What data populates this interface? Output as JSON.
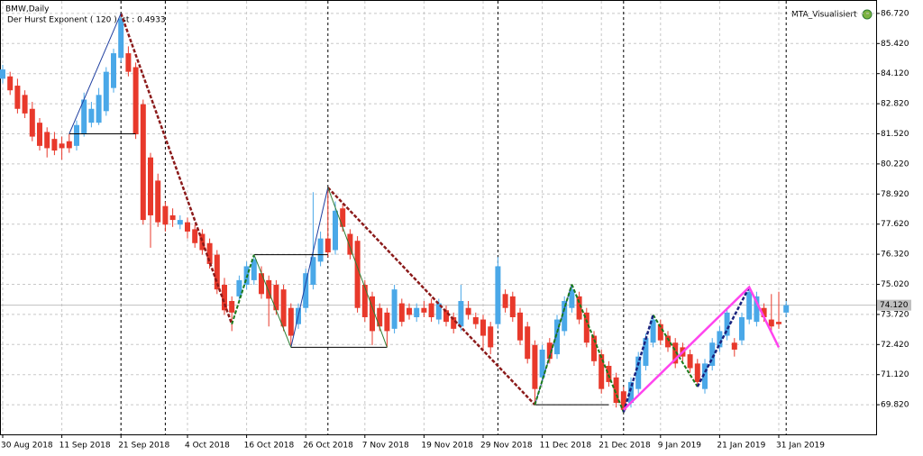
{
  "chart_data": {
    "type": "candlestick",
    "title": "BMW,Daily",
    "subtitle": "Der Hurst Exponent ( 120 ) ist : 0.4933",
    "indicator_label": "MTA_Visualisiert",
    "up_color": "#4aa8e8",
    "down_color": "#e8392b",
    "grid": true,
    "categories": [
      "30 Aug 2018",
      null,
      null,
      null,
      null,
      null,
      null,
      null,
      "11 Sep 2018",
      null,
      null,
      null,
      null,
      null,
      null,
      null,
      "21 Sep 2018",
      null,
      null,
      null,
      null,
      null,
      null,
      null,
      null,
      "4 Oct 2018",
      null,
      null,
      null,
      null,
      null,
      null,
      null,
      "16 Oct 2018",
      null,
      null,
      null,
      null,
      null,
      null,
      null,
      "26 Oct 2018",
      null,
      null,
      null,
      null,
      null,
      null,
      null,
      "7 Nov 2018",
      null,
      null,
      null,
      null,
      null,
      null,
      null,
      "19 Nov 2018",
      null,
      null,
      null,
      null,
      null,
      null,
      null,
      "29 Nov 2018",
      null,
      null,
      null,
      null,
      null,
      null,
      null,
      "11 Dec 2018",
      null,
      null,
      null,
      null,
      null,
      null,
      null,
      "21 Dec 2018",
      null,
      null,
      null,
      null,
      null,
      null,
      null,
      "9 Jan 2019",
      null,
      null,
      null,
      null,
      null,
      null,
      null,
      "21 Jan 2019",
      null,
      null,
      null,
      null,
      null,
      null,
      null,
      "31 Jan 2019",
      null
    ],
    "ohlc": [
      [
        83.9,
        84.5,
        83.7,
        84.3
      ],
      [
        84.0,
        84.2,
        83.2,
        83.4
      ],
      [
        83.6,
        83.9,
        82.4,
        82.6
      ],
      [
        83.2,
        83.4,
        82.2,
        82.4
      ],
      [
        82.6,
        82.9,
        81.2,
        81.4
      ],
      [
        82.0,
        82.2,
        80.8,
        81.0
      ],
      [
        81.6,
        81.8,
        80.5,
        80.9
      ],
      [
        81.3,
        81.6,
        80.6,
        80.8
      ],
      [
        81.1,
        81.4,
        80.4,
        80.9
      ],
      [
        81.2,
        81.5,
        80.7,
        80.9
      ],
      [
        81.0,
        82.1,
        80.8,
        81.9
      ],
      [
        81.5,
        83.3,
        81.4,
        83.0
      ],
      [
        82.0,
        82.9,
        81.8,
        82.6
      ],
      [
        82.0,
        83.5,
        81.9,
        83.2
      ],
      [
        82.5,
        84.4,
        82.3,
        84.2
      ],
      [
        83.5,
        85.2,
        83.3,
        85.0
      ],
      [
        84.8,
        86.72,
        84.6,
        86.5
      ],
      [
        85.0,
        85.3,
        84.0,
        84.2
      ],
      [
        84.4,
        84.6,
        81.3,
        81.5
      ],
      [
        82.8,
        83.0,
        77.6,
        77.8
      ],
      [
        80.5,
        80.7,
        76.6,
        78.0
      ],
      [
        79.5,
        79.8,
        77.5,
        77.7
      ],
      [
        78.4,
        78.6,
        77.3,
        77.6
      ],
      [
        78.0,
        78.3,
        77.5,
        77.8
      ],
      [
        77.6,
        78.0,
        77.4,
        77.8
      ],
      [
        77.7,
        77.9,
        77.0,
        77.3
      ],
      [
        77.4,
        77.6,
        76.6,
        76.8
      ],
      [
        77.2,
        77.4,
        76.3,
        76.5
      ],
      [
        76.8,
        77.0,
        75.7,
        75.9
      ],
      [
        76.3,
        76.5,
        74.6,
        74.8
      ],
      [
        75.0,
        75.3,
        73.7,
        73.9
      ],
      [
        74.3,
        74.5,
        73.0,
        73.8
      ],
      [
        74.5,
        75.4,
        74.3,
        75.2
      ],
      [
        75.0,
        76.0,
        74.8,
        75.8
      ],
      [
        75.2,
        76.3,
        75.0,
        76.1
      ],
      [
        75.5,
        75.8,
        74.4,
        74.6
      ],
      [
        75.2,
        75.4,
        73.2,
        74.4
      ],
      [
        75.0,
        75.2,
        73.7,
        73.9
      ],
      [
        74.8,
        75.0,
        73.0,
        73.2
      ],
      [
        74.0,
        74.2,
        72.3,
        72.8
      ],
      [
        73.3,
        74.2,
        73.1,
        74.0
      ],
      [
        74.0,
        75.7,
        73.8,
        75.5
      ],
      [
        75.0,
        79.0,
        74.8,
        76.2
      ],
      [
        76.0,
        77.3,
        75.8,
        77.0
      ],
      [
        77.0,
        79.2,
        76.2,
        76.4
      ],
      [
        76.5,
        78.6,
        76.3,
        78.2
      ],
      [
        78.3,
        78.5,
        77.3,
        77.5
      ],
      [
        77.2,
        77.4,
        76.1,
        76.3
      ],
      [
        76.9,
        77.1,
        73.8,
        74.0
      ],
      [
        75.0,
        75.2,
        73.4,
        73.6
      ],
      [
        74.5,
        74.7,
        72.4,
        73.0
      ],
      [
        74.0,
        74.2,
        73.0,
        73.2
      ],
      [
        73.8,
        74.0,
        72.3,
        73.0
      ],
      [
        73.1,
        75.0,
        72.9,
        74.8
      ],
      [
        74.2,
        74.4,
        73.2,
        73.4
      ],
      [
        74.0,
        74.2,
        73.5,
        73.7
      ],
      [
        73.6,
        74.2,
        73.4,
        74.0
      ],
      [
        74.0,
        74.3,
        73.6,
        73.8
      ],
      [
        74.2,
        74.4,
        73.4,
        73.6
      ],
      [
        73.5,
        74.4,
        73.3,
        74.2
      ],
      [
        73.9,
        74.1,
        73.2,
        73.4
      ],
      [
        73.6,
        73.8,
        72.9,
        73.1
      ],
      [
        73.2,
        75.0,
        73.0,
        74.3
      ],
      [
        74.0,
        74.3,
        73.5,
        73.7
      ],
      [
        73.6,
        73.8,
        73.1,
        73.3
      ],
      [
        73.5,
        73.7,
        72.2,
        72.8
      ],
      [
        73.2,
        73.4,
        72.0,
        72.3
      ],
      [
        73.3,
        76.2,
        73.1,
        75.8
      ],
      [
        74.6,
        74.8,
        73.8,
        74.0
      ],
      [
        74.5,
        74.7,
        73.4,
        73.6
      ],
      [
        73.8,
        74.0,
        72.4,
        72.6
      ],
      [
        73.2,
        73.4,
        71.6,
        71.8
      ],
      [
        72.4,
        72.6,
        69.85,
        70.5
      ],
      [
        71.0,
        72.4,
        70.8,
        72.2
      ],
      [
        72.5,
        72.7,
        71.6,
        71.8
      ],
      [
        72.0,
        73.7,
        71.8,
        73.5
      ],
      [
        73.0,
        74.5,
        72.8,
        74.3
      ],
      [
        74.0,
        75.0,
        73.8,
        74.8
      ],
      [
        74.5,
        74.7,
        73.3,
        73.5
      ],
      [
        73.8,
        74.0,
        72.3,
        72.5
      ],
      [
        72.8,
        73.0,
        71.5,
        71.7
      ],
      [
        72.0,
        72.2,
        70.3,
        70.5
      ],
      [
        71.5,
        71.7,
        70.6,
        70.8
      ],
      [
        71.0,
        71.2,
        69.7,
        69.9
      ],
      [
        70.4,
        70.6,
        69.5,
        69.6
      ],
      [
        69.9,
        71.0,
        69.7,
        70.8
      ],
      [
        70.5,
        72.1,
        70.3,
        71.9
      ],
      [
        71.5,
        72.9,
        71.3,
        72.7
      ],
      [
        72.5,
        73.7,
        72.3,
        73.5
      ],
      [
        73.3,
        73.5,
        72.4,
        72.6
      ],
      [
        72.8,
        73.0,
        72.1,
        72.3
      ],
      [
        72.5,
        72.7,
        71.4,
        71.6
      ],
      [
        72.3,
        72.5,
        71.7,
        71.9
      ],
      [
        72.0,
        72.2,
        71.2,
        71.4
      ],
      [
        71.6,
        71.8,
        70.6,
        70.8
      ],
      [
        70.5,
        71.8,
        70.3,
        71.6
      ],
      [
        71.5,
        72.7,
        71.3,
        72.5
      ],
      [
        72.3,
        73.2,
        72.1,
        73.0
      ],
      [
        72.8,
        74.0,
        72.6,
        73.8
      ],
      [
        72.5,
        72.7,
        71.9,
        72.2
      ],
      [
        72.6,
        73.8,
        72.4,
        73.6
      ],
      [
        73.5,
        74.9,
        73.3,
        74.7
      ],
      [
        73.4,
        74.7,
        73.2,
        74.5
      ],
      [
        74.0,
        74.2,
        73.4,
        73.6
      ],
      [
        73.5,
        74.6,
        73.0,
        73.2
      ],
      [
        73.4,
        74.7,
        73.1,
        73.3
      ],
      [
        73.8,
        74.3,
        73.6,
        74.12
      ]
    ],
    "ylim": [
      68.54,
      87.3
    ],
    "yticks": [
      {
        "value": 69.82,
        "label": "69.820"
      },
      {
        "value": 71.12,
        "label": "71.120"
      },
      {
        "value": 72.42,
        "label": "72.420"
      },
      {
        "value": 73.72,
        "label": "73.720"
      },
      {
        "value": 75.02,
        "label": "75.020"
      },
      {
        "value": 76.32,
        "label": "76.320"
      },
      {
        "value": 77.62,
        "label": "77.620"
      },
      {
        "value": 78.92,
        "label": "78.920"
      },
      {
        "value": 80.22,
        "label": "80.220"
      },
      {
        "value": 81.52,
        "label": "81.520"
      },
      {
        "value": 82.82,
        "label": "82.820"
      },
      {
        "value": 84.12,
        "label": "84.120"
      },
      {
        "value": 85.42,
        "label": "85.420"
      },
      {
        "value": 86.72,
        "label": "86.720"
      }
    ],
    "last_price": {
      "value": 74.12,
      "label": "74.120"
    },
    "vlines": [
      16,
      22,
      44,
      67,
      84,
      106
    ],
    "overlays": [
      {
        "color": "#8b1a1a",
        "dashed": true,
        "width": 2.5,
        "points": [
          [
            16,
            86.72
          ],
          [
            31,
            73.3
          ]
        ]
      },
      {
        "color": "#8b1a1a",
        "dashed": true,
        "width": 2.5,
        "points": [
          [
            44,
            79.2
          ],
          [
            72,
            69.82
          ]
        ]
      },
      {
        "color": "#1f3fa0",
        "dashed": false,
        "width": 1,
        "points": [
          [
            9,
            81.52
          ],
          [
            16,
            86.72
          ]
        ]
      },
      {
        "color": "#1f3fa0",
        "dashed": false,
        "width": 1,
        "points": [
          [
            39,
            72.3
          ],
          [
            44,
            79.2
          ]
        ]
      },
      {
        "color": "#1f3fa0",
        "dashed": false,
        "width": 1,
        "points": [
          [
            72,
            69.82
          ],
          [
            77,
            75.02
          ]
        ]
      },
      {
        "color": "#000000",
        "dashed": false,
        "width": 1,
        "points": [
          [
            9,
            81.52
          ],
          [
            18,
            81.52
          ]
        ]
      },
      {
        "color": "#000000",
        "dashed": false,
        "width": 1,
        "points": [
          [
            34,
            76.3
          ],
          [
            44,
            76.3
          ]
        ]
      },
      {
        "color": "#000000",
        "dashed": false,
        "width": 1,
        "points": [
          [
            39,
            72.3
          ],
          [
            52,
            72.3
          ]
        ]
      },
      {
        "color": "#000000",
        "dashed": false,
        "width": 1,
        "points": [
          [
            72,
            69.82
          ],
          [
            82,
            69.82
          ]
        ]
      },
      {
        "color": "#1a7a1a",
        "dashed": true,
        "width": 2,
        "points": [
          [
            31,
            73.3
          ],
          [
            34,
            76.3
          ]
        ]
      },
      {
        "color": "#2e7d32",
        "dashed": false,
        "width": 1,
        "points": [
          [
            34,
            76.3
          ],
          [
            39,
            72.3
          ]
        ]
      },
      {
        "color": "#2e7d32",
        "dashed": false,
        "width": 1,
        "points": [
          [
            44,
            79.2
          ],
          [
            52,
            72.3
          ]
        ]
      },
      {
        "color": "#1a7a1a",
        "dashed": true,
        "width": 2,
        "points": [
          [
            72,
            69.82
          ],
          [
            77,
            75.02
          ]
        ]
      },
      {
        "color": "#1a7a1a",
        "dashed": true,
        "width": 2,
        "points": [
          [
            77,
            75.02
          ],
          [
            84,
            69.5
          ]
        ]
      },
      {
        "color": "#1a7a1a",
        "dashed": true,
        "width": 2,
        "points": [
          [
            88,
            73.7
          ],
          [
            94,
            70.6
          ]
        ]
      },
      {
        "color": "#1a237e",
        "dashed": true,
        "width": 2.5,
        "points": [
          [
            84,
            69.5
          ],
          [
            88,
            73.7
          ]
        ]
      },
      {
        "color": "#1a237e",
        "dashed": true,
        "width": 2.5,
        "points": [
          [
            94,
            70.6
          ],
          [
            101,
            74.9
          ]
        ]
      },
      {
        "color": "#ff44ee",
        "dashed": false,
        "width": 2.5,
        "points": [
          [
            84,
            69.6
          ],
          [
            101,
            74.9
          ],
          [
            105,
            72.3
          ]
        ]
      }
    ]
  }
}
